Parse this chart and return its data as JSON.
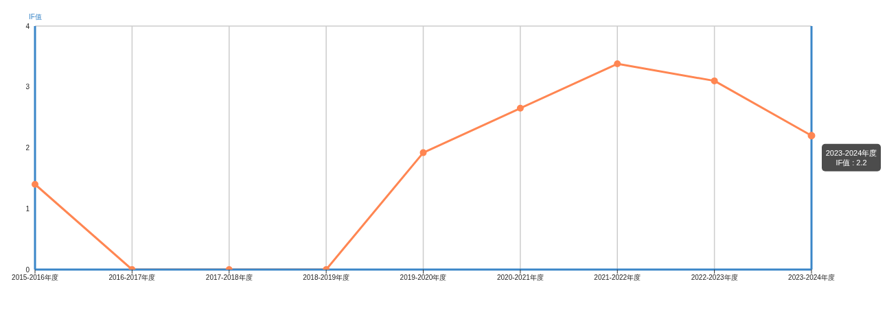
{
  "chart_data": {
    "type": "line",
    "ylabel": "IF值",
    "categories": [
      "2015-2016年度",
      "2016-2017年度",
      "2017-2018年度",
      "2018-2019年度",
      "2019-2020年度",
      "2020-2021年度",
      "2021-2022年度",
      "2022-2023年度",
      "2023-2024年度"
    ],
    "series": [
      {
        "color": "#ff8652",
        "values": [
          1.4,
          0,
          0,
          0,
          1.92,
          2.65,
          3.38,
          3.1,
          2.2
        ]
      }
    ],
    "ylim": [
      0,
      4
    ],
    "yticks": [
      0,
      1,
      2,
      3,
      4
    ],
    "grid": true,
    "marker": "circle",
    "line_style": "solid",
    "annotations": [
      "2023-2024年度",
      "IF值 : 2.2"
    ]
  }
}
